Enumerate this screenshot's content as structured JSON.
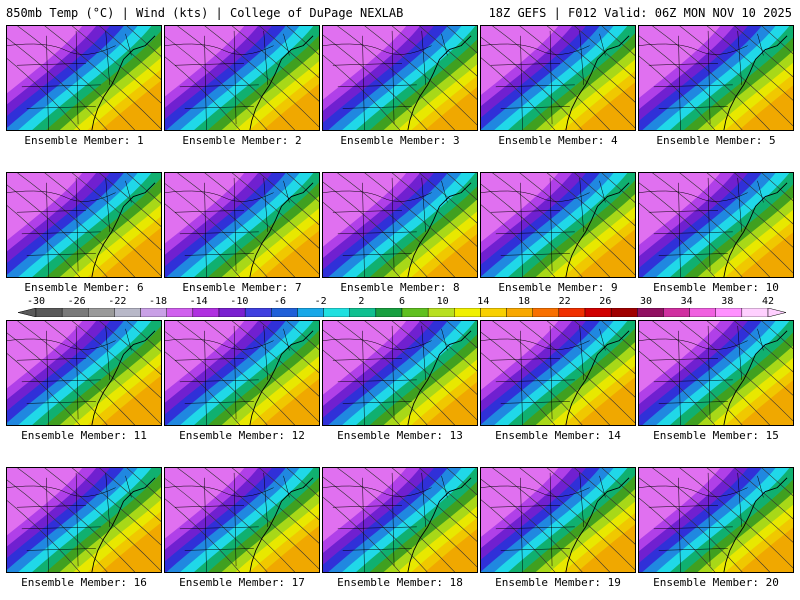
{
  "header": {
    "left": "850mb Temp (°C) | Wind (kts) | College of DuPage NEXLAB",
    "right": "18Z GEFS | F012 Valid: 06Z MON NOV 10 2025"
  },
  "members": [
    {
      "label": "Ensemble Member: 1"
    },
    {
      "label": "Ensemble Member: 2"
    },
    {
      "label": "Ensemble Member: 3"
    },
    {
      "label": "Ensemble Member: 4"
    },
    {
      "label": "Ensemble Member: 5"
    },
    {
      "label": "Ensemble Member: 6"
    },
    {
      "label": "Ensemble Member: 7"
    },
    {
      "label": "Ensemble Member: 8"
    },
    {
      "label": "Ensemble Member: 9"
    },
    {
      "label": "Ensemble Member: 10"
    },
    {
      "label": "Ensemble Member: 11"
    },
    {
      "label": "Ensemble Member: 12"
    },
    {
      "label": "Ensemble Member: 13"
    },
    {
      "label": "Ensemble Member: 14"
    },
    {
      "label": "Ensemble Member: 15"
    },
    {
      "label": "Ensemble Member: 16"
    },
    {
      "label": "Ensemble Member: 17"
    },
    {
      "label": "Ensemble Member: 18"
    },
    {
      "label": "Ensemble Member: 19"
    },
    {
      "label": "Ensemble Member: 20"
    }
  ],
  "colorbar": {
    "tick_labels": [
      "-30",
      "-26",
      "-22",
      "-18",
      "-14",
      "-10",
      "-6",
      "-2",
      "2",
      "6",
      "10",
      "14",
      "18",
      "22",
      "26",
      "30",
      "34",
      "38",
      "42"
    ],
    "colors": [
      "#5a5a5a",
      "#7a7a7a",
      "#9a9a9a",
      "#b8b8c8",
      "#c9a0e6",
      "#d060ee",
      "#b030e0",
      "#7a20d0",
      "#4040e0",
      "#2060d8",
      "#18a8e8",
      "#20e0e0",
      "#10c090",
      "#18a040",
      "#60c020",
      "#b8e020",
      "#f0f000",
      "#f8d000",
      "#f8a800",
      "#f87000",
      "#f03000",
      "#d00000",
      "#a00000",
      "#901060",
      "#d030a0",
      "#f060e0",
      "#ff90ff",
      "#ffd0ff"
    ]
  },
  "map_colors": {
    "stops": [
      "#e070f0",
      "#b040e8",
      "#7020d0",
      "#3030d8",
      "#2088e0",
      "#20d8e8",
      "#10b070",
      "#40a020",
      "#a8d818",
      "#e8e800",
      "#f0c800",
      "#f0a800"
    ],
    "land_outline": "#000000",
    "contour": "#303030"
  }
}
